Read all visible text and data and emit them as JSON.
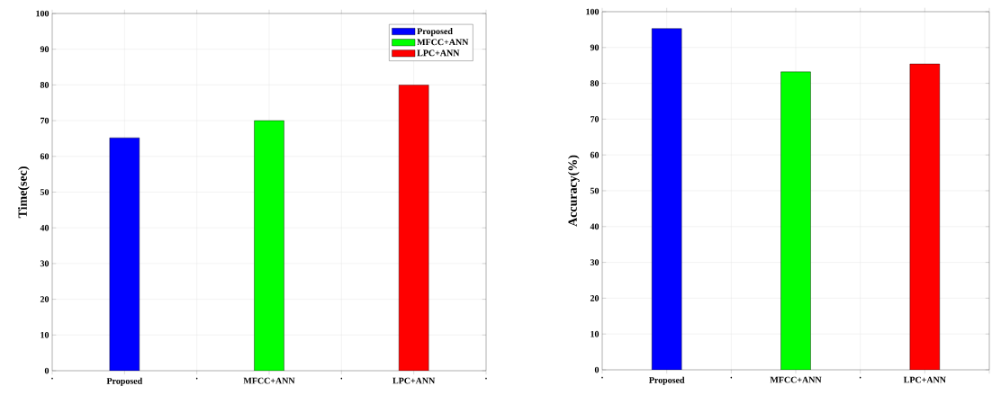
{
  "chart_data": [
    {
      "type": "bar",
      "ylabel": "Time(sec)",
      "categories": [
        ".",
        "Proposed",
        ".",
        "MFCC+ANN",
        ".",
        "LPC+ANN",
        "."
      ],
      "series": [
        {
          "name": "Proposed",
          "color": "#0000ff",
          "values": [
            null,
            65.2,
            null,
            null,
            null,
            null,
            null
          ]
        },
        {
          "name": "MFCC+ANN",
          "color": "#00ff00",
          "values": [
            null,
            null,
            null,
            70,
            null,
            null,
            null
          ]
        },
        {
          "name": "LPC+ANN",
          "color": "#ff0000",
          "values": [
            null,
            null,
            null,
            null,
            null,
            80,
            null
          ]
        }
      ],
      "ylim": [
        0,
        100
      ],
      "yticks": [
        0,
        10,
        20,
        30,
        40,
        50,
        60,
        70,
        80,
        90,
        100
      ],
      "grid": true,
      "legend": "top right"
    },
    {
      "type": "bar",
      "ylabel": "Accuracy(%)",
      "categories": [
        ".",
        "Proposed",
        ".",
        "MFCC+ANN",
        ".",
        "LPC+ANN",
        null
      ],
      "values": [
        null,
        95.3,
        null,
        83.2,
        null,
        85.4,
        null
      ],
      "colors": [
        "#0000ff",
        "#0000ff",
        "#00ff00",
        "#00ff00",
        "#ff0000",
        "#ff0000",
        "#ff0000"
      ],
      "ylim": [
        0,
        100
      ],
      "yticks": [
        0,
        10,
        20,
        30,
        40,
        50,
        60,
        70,
        80,
        90,
        100
      ],
      "grid": true
    }
  ]
}
